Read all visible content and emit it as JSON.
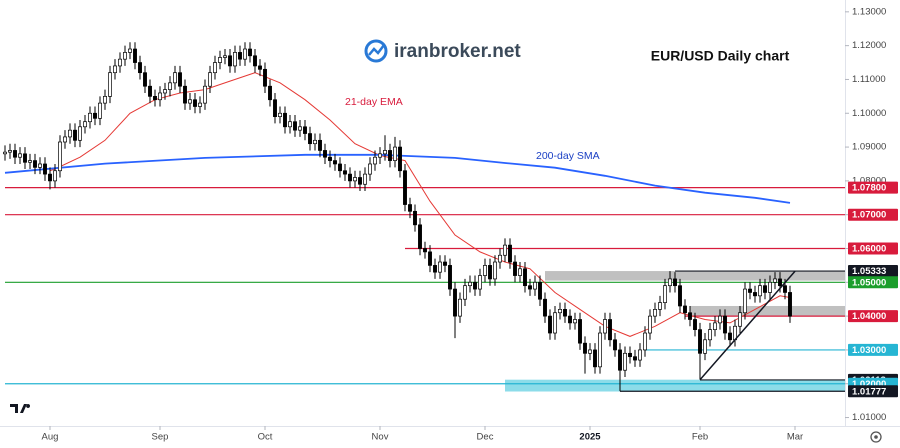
{
  "chart_data": {
    "type": "candlestick",
    "title": "EUR/USD Daily chart",
    "watermark": "iranbroker.net",
    "annotations": [
      "21-day EMA",
      "200-day SMA"
    ],
    "up_color": "#ffffff",
    "down_color": "#000000",
    "grid": false,
    "ylim": [
      1.0075,
      1.1335
    ],
    "xlim": [
      -1,
      168
    ],
    "yticks": [
      {
        "value": 1.01,
        "label": "1.01000"
      },
      {
        "value": 1.02,
        "label": "1.02000"
      },
      {
        "value": 1.03,
        "label": "1.03000"
      },
      {
        "value": 1.04,
        "label": "1.04000"
      },
      {
        "value": 1.05,
        "label": "1.05000"
      },
      {
        "value": 1.06,
        "label": "1.06000"
      },
      {
        "value": 1.07,
        "label": "1.07000"
      },
      {
        "value": 1.08,
        "label": "1.08000"
      },
      {
        "value": 1.09,
        "label": "1.09000"
      },
      {
        "value": 1.1,
        "label": "1.10000"
      },
      {
        "value": 1.11,
        "label": "1.11000"
      },
      {
        "value": 1.12,
        "label": "1.12000"
      },
      {
        "value": 1.13,
        "label": "1.13000"
      }
    ],
    "xticks": [
      {
        "value": 9,
        "label": "Aug"
      },
      {
        "value": 31,
        "label": "Sep"
      },
      {
        "value": 52,
        "label": "Oct"
      },
      {
        "value": 75,
        "label": "Nov"
      },
      {
        "value": 96,
        "label": "Dec"
      },
      {
        "value": 117,
        "label": "2025"
      },
      {
        "value": 139,
        "label": "Feb"
      },
      {
        "value": 158,
        "label": "Mar"
      }
    ],
    "open": [
      1.088,
      1.0885,
      1.089,
      1.087,
      1.088,
      1.0855,
      1.086,
      1.084,
      1.085,
      1.082,
      1.08,
      1.083,
      1.0915,
      1.093,
      1.095,
      1.092,
      1.096,
      1.0975,
      1.1,
      1.0985,
      1.103,
      1.105,
      1.112,
      1.114,
      1.116,
      1.118,
      1.119,
      1.115,
      1.112,
      1.108,
      1.105,
      1.104,
      1.106,
      1.107,
      1.109,
      1.112,
      1.108,
      1.103,
      1.104,
      1.102,
      1.103,
      1.108,
      1.112,
      1.115,
      1.1165,
      1.117,
      1.114,
      1.118,
      1.116,
      1.119,
      1.117,
      1.114,
      1.113,
      1.108,
      1.104,
      1.099,
      1.1,
      1.096,
      1.0975,
      1.095,
      1.096,
      1.094,
      1.091,
      1.092,
      1.089,
      1.087,
      1.086,
      1.085,
      1.083,
      1.082,
      1.08,
      1.081,
      1.079,
      1.082,
      1.085,
      1.087,
      1.088,
      1.089,
      1.086,
      1.09,
      1.083,
      1.073,
      1.071,
      1.067,
      1.06,
      1.059,
      1.055,
      1.053,
      1.056,
      1.055,
      1.048,
      1.04,
      1.045,
      1.049,
      1.05,
      1.048,
      1.052,
      1.055,
      1.051,
      1.056,
      1.058,
      1.061,
      1.056,
      1.052,
      1.054,
      1.049,
      1.048,
      1.05,
      1.045,
      1.04,
      1.035,
      1.041,
      1.042,
      1.04,
      1.038,
      1.039,
      1.032,
      1.029,
      1.03,
      1.025,
      1.035,
      1.039,
      1.033,
      1.03,
      1.024,
      1.029,
      1.028,
      1.027,
      1.03,
      1.035,
      1.04,
      1.042,
      1.044,
      1.049,
      1.051,
      1.049,
      1.043,
      1.041,
      1.039,
      1.036,
      1.029,
      1.033,
      1.036,
      1.038,
      1.04,
      1.035,
      1.033,
      1.037,
      1.041,
      1.048,
      1.047,
      1.046,
      1.049,
      1.047,
      1.05,
      1.051,
      1.049,
      1.047
    ],
    "high": [
      1.0905,
      1.091,
      1.091,
      1.09,
      1.09,
      1.088,
      1.088,
      1.087,
      1.087,
      1.084,
      1.085,
      1.0935,
      1.095,
      1.097,
      1.097,
      1.098,
      1.0995,
      1.102,
      1.102,
      1.105,
      1.107,
      1.114,
      1.116,
      1.118,
      1.12,
      1.121,
      1.121,
      1.117,
      1.114,
      1.11,
      1.107,
      1.108,
      1.109,
      1.111,
      1.114,
      1.114,
      1.11,
      1.106,
      1.106,
      1.105,
      1.11,
      1.114,
      1.117,
      1.1185,
      1.119,
      1.119,
      1.12,
      1.12,
      1.121,
      1.121,
      1.119,
      1.116,
      1.115,
      1.11,
      1.106,
      1.102,
      1.102,
      1.0995,
      1.0995,
      1.098,
      1.098,
      1.096,
      1.094,
      1.094,
      1.091,
      1.089,
      1.088,
      1.087,
      1.085,
      1.084,
      1.083,
      1.083,
      1.084,
      1.087,
      1.089,
      1.09,
      1.0935,
      1.091,
      1.093,
      1.092,
      1.085,
      1.075,
      1.073,
      1.069,
      1.062,
      1.061,
      1.057,
      1.058,
      1.058,
      1.057,
      1.05,
      1.047,
      1.051,
      1.052,
      1.052,
      1.054,
      1.057,
      1.057,
      1.058,
      1.06,
      1.063,
      1.063,
      1.058,
      1.056,
      1.056,
      1.051,
      1.052,
      1.052,
      1.047,
      1.042,
      1.043,
      1.044,
      1.044,
      1.042,
      1.041,
      1.041,
      1.034,
      1.032,
      1.032,
      1.037,
      1.041,
      1.041,
      1.035,
      1.032,
      1.031,
      1.031,
      1.03,
      1.032,
      1.037,
      1.042,
      1.044,
      1.046,
      1.051,
      1.0533,
      1.053,
      1.051,
      1.045,
      1.043,
      1.041,
      1.038,
      1.035,
      1.038,
      1.04,
      1.042,
      1.042,
      1.037,
      1.039,
      1.043,
      1.05,
      1.05,
      1.049,
      1.051,
      1.051,
      1.052,
      1.053,
      1.053,
      1.051,
      1.049
    ],
    "low": [
      1.086,
      1.0865,
      1.085,
      1.085,
      1.0835,
      1.0835,
      1.082,
      1.082,
      1.08,
      1.0775,
      1.078,
      1.081,
      1.0895,
      1.091,
      1.09,
      1.09,
      1.094,
      1.0955,
      1.0965,
      1.0965,
      1.101,
      1.103,
      1.11,
      1.112,
      1.114,
      1.116,
      1.113,
      1.11,
      1.106,
      1.103,
      1.102,
      1.102,
      1.104,
      1.105,
      1.107,
      1.106,
      1.101,
      1.101,
      1.1,
      1.1,
      1.101,
      1.106,
      1.11,
      1.113,
      1.1145,
      1.112,
      1.112,
      1.114,
      1.114,
      1.115,
      1.112,
      1.111,
      1.106,
      1.102,
      1.097,
      1.097,
      1.094,
      1.094,
      1.093,
      1.093,
      1.092,
      1.089,
      1.089,
      1.087,
      1.085,
      1.084,
      1.083,
      1.081,
      1.08,
      1.078,
      1.078,
      1.077,
      1.077,
      1.08,
      1.083,
      1.085,
      1.086,
      1.084,
      1.084,
      1.081,
      1.071,
      1.069,
      1.065,
      1.058,
      1.057,
      1.053,
      1.051,
      1.051,
      1.053,
      1.046,
      1.0335,
      1.038,
      1.043,
      1.047,
      1.046,
      1.046,
      1.05,
      1.049,
      1.049,
      1.054,
      1.056,
      1.054,
      1.05,
      1.05,
      1.047,
      1.046,
      1.046,
      1.043,
      1.038,
      1.033,
      1.033,
      1.039,
      1.038,
      1.036,
      1.036,
      1.03,
      1.023,
      1.027,
      1.023,
      1.023,
      1.033,
      1.031,
      1.028,
      1.0178,
      1.022,
      1.026,
      1.025,
      1.025,
      1.028,
      1.033,
      1.038,
      1.04,
      1.042,
      1.047,
      1.047,
      1.041,
      1.039,
      1.037,
      1.034,
      1.0212,
      1.027,
      1.031,
      1.034,
      1.036,
      1.033,
      1.031,
      1.031,
      1.035,
      1.039,
      1.045,
      1.044,
      1.044,
      1.045,
      1.045,
      1.048,
      1.047,
      1.045,
      1.038
    ],
    "close": [
      1.0885,
      1.089,
      1.087,
      1.088,
      1.0855,
      1.086,
      1.084,
      1.085,
      1.082,
      1.08,
      1.083,
      1.0915,
      1.093,
      1.095,
      1.092,
      1.096,
      1.0975,
      1.1,
      1.0985,
      1.103,
      1.105,
      1.112,
      1.114,
      1.116,
      1.118,
      1.119,
      1.115,
      1.112,
      1.108,
      1.105,
      1.104,
      1.106,
      1.107,
      1.109,
      1.112,
      1.108,
      1.103,
      1.104,
      1.102,
      1.103,
      1.108,
      1.112,
      1.115,
      1.1165,
      1.117,
      1.114,
      1.118,
      1.116,
      1.119,
      1.117,
      1.114,
      1.113,
      1.108,
      1.104,
      1.099,
      1.1,
      1.096,
      1.0975,
      1.095,
      1.096,
      1.094,
      1.091,
      1.092,
      1.089,
      1.087,
      1.086,
      1.085,
      1.083,
      1.082,
      1.08,
      1.081,
      1.079,
      1.082,
      1.085,
      1.087,
      1.088,
      1.089,
      1.086,
      1.09,
      1.083,
      1.073,
      1.071,
      1.067,
      1.06,
      1.059,
      1.055,
      1.053,
      1.056,
      1.055,
      1.048,
      1.04,
      1.045,
      1.049,
      1.05,
      1.048,
      1.052,
      1.055,
      1.051,
      1.056,
      1.058,
      1.061,
      1.056,
      1.052,
      1.054,
      1.049,
      1.048,
      1.05,
      1.045,
      1.04,
      1.035,
      1.041,
      1.042,
      1.04,
      1.038,
      1.039,
      1.032,
      1.029,
      1.03,
      1.025,
      1.035,
      1.039,
      1.033,
      1.03,
      1.024,
      1.029,
      1.028,
      1.027,
      1.03,
      1.035,
      1.04,
      1.042,
      1.044,
      1.049,
      1.051,
      1.049,
      1.043,
      1.041,
      1.039,
      1.036,
      1.029,
      1.033,
      1.036,
      1.038,
      1.04,
      1.035,
      1.033,
      1.037,
      1.041,
      1.048,
      1.047,
      1.046,
      1.049,
      1.047,
      1.05,
      1.051,
      1.049,
      1.047,
      1.04
    ],
    "series": [
      {
        "name": "21-day EMA",
        "color": "#e53935",
        "x": [
          9,
          10,
          15,
          20,
          25,
          30,
          35,
          40,
          45,
          50,
          55,
          60,
          65,
          70,
          75,
          80,
          85,
          90,
          95,
          100,
          105,
          110,
          115,
          120,
          125,
          130,
          135,
          140,
          145,
          150,
          155,
          157
        ],
        "values": [
          1.083,
          1.0835,
          1.087,
          1.092,
          1.1,
          1.104,
          1.106,
          1.107,
          1.1095,
          1.112,
          1.109,
          1.104,
          1.098,
          1.091,
          1.0875,
          1.086,
          1.074,
          1.064,
          1.059,
          1.056,
          1.054,
          1.047,
          1.042,
          1.037,
          1.034,
          1.037,
          1.041,
          1.039,
          1.038,
          1.042,
          1.046,
          1.0455
        ]
      },
      {
        "name": "200-day SMA",
        "color": "#2962ff",
        "x": [
          0,
          20,
          40,
          60,
          75,
          80,
          90,
          100,
          110,
          120,
          130,
          140,
          150,
          157
        ],
        "values": [
          1.0824,
          1.0851,
          1.0868,
          1.0877,
          1.0877,
          1.0874,
          1.0868,
          1.0853,
          1.0839,
          1.0815,
          1.0786,
          1.0765,
          1.075,
          1.0735
        ]
      }
    ],
    "levels": [
      {
        "value": 1.078,
        "label": "1.07800",
        "color": "#d81b3c",
        "start": 0
      },
      {
        "value": 1.07,
        "label": "1.07000",
        "color": "#d81b3c",
        "start": 0
      },
      {
        "value": 1.06,
        "label": "1.06000",
        "color": "#d81b3c",
        "start": 80
      },
      {
        "value": 1.05333,
        "label": "1.05333",
        "color": "#131722",
        "start": 134
      },
      {
        "value": 1.05,
        "label": "1.05000",
        "color": "#1b9e2b",
        "start": 0
      },
      {
        "value": 1.04,
        "label": "1.04000",
        "color": "#d81b3c",
        "start": 136
      },
      {
        "value": 1.03,
        "label": "1.03000",
        "color": "#26b5d3",
        "start": 128
      },
      {
        "value": 1.02113,
        "label": "1.02113",
        "color": "#131722",
        "start": 139
      },
      {
        "value": 1.02,
        "label": "1.02000",
        "color": "#26b5d3",
        "start": 0
      },
      {
        "value": 1.01777,
        "label": "1.01777",
        "color": "#131722",
        "start": 123
      }
    ],
    "zones": [
      {
        "from": 1.0505,
        "to": 1.05333,
        "start": 108,
        "color": "#b0b0b0"
      },
      {
        "from": 1.04,
        "to": 1.043,
        "start": 137,
        "color": "#b0b0b0"
      },
      {
        "from": 1.0177,
        "to": 1.0212,
        "start": 100,
        "color": "#6fd3e3"
      }
    ],
    "trendline": {
      "x": [
        139,
        158
      ],
      "values": [
        1.0212,
        1.0533
      ],
      "color": "#131722"
    }
  }
}
